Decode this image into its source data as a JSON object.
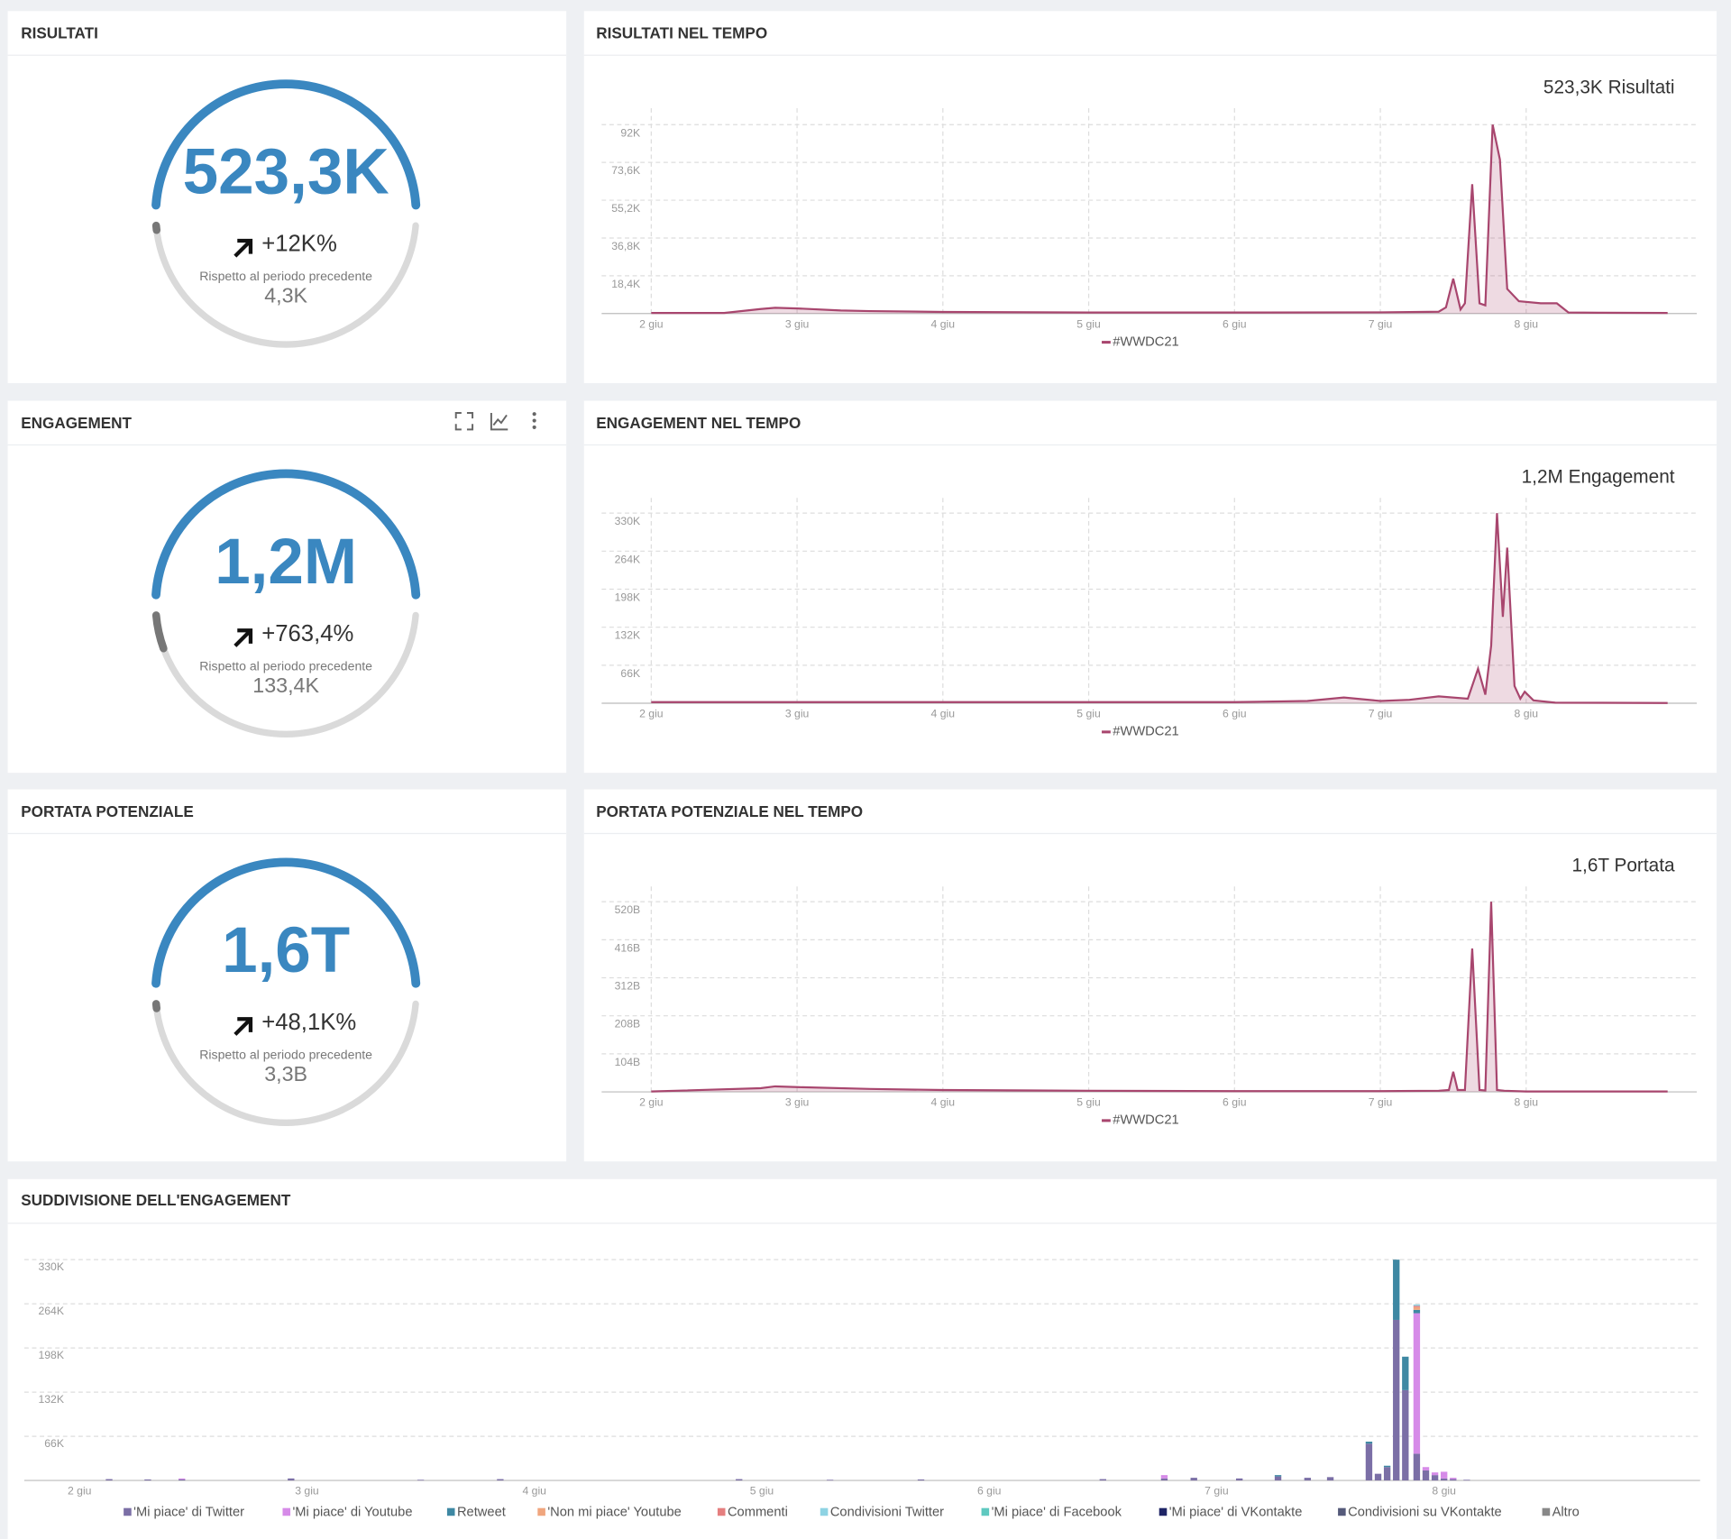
{
  "gauges": [
    {
      "title": "RISULTATI",
      "value": "523,3K",
      "change": "+12K%",
      "comparison_label": "Rispetto al periodo precedente",
      "previous": "4,3K"
    },
    {
      "title": "ENGAGEMENT",
      "value": "1,2M",
      "change": "+763,4%",
      "comparison_label": "Rispetto al periodo precedente",
      "previous": "133,4K"
    },
    {
      "title": "PORTATA POTENZIALE",
      "value": "1,6T",
      "change": "+48,1K%",
      "comparison_label": "Rispetto al periodo precedente",
      "previous": "3,3B"
    }
  ],
  "chart_data": [
    {
      "type": "line",
      "title": "RISULTATI NEL TEMPO",
      "annotation": "523,3K Risultati",
      "x": [
        2,
        2.5,
        2.75,
        2.85,
        3,
        3.3,
        3.5,
        4,
        5,
        6,
        7,
        7.4,
        7.45,
        7.5,
        7.55,
        7.58,
        7.63,
        7.68,
        7.72,
        7.77,
        7.82,
        7.87,
        7.95,
        8.1,
        8.21,
        8.29,
        8.5,
        8.97
      ],
      "series": [
        {
          "name": "#WWDC21",
          "color": "#a8466e",
          "values": [
            300,
            300,
            2200,
            2800,
            2500,
            1500,
            1200,
            800,
            500,
            500,
            600,
            900,
            3000,
            17000,
            2000,
            5000,
            63000,
            5000,
            4000,
            92000,
            75000,
            12000,
            6000,
            5000,
            5000,
            500,
            400,
            300
          ]
        }
      ],
      "xlim": [
        1.66,
        9.17
      ],
      "xticks": [
        {
          "value": 2,
          "label": "2 giu"
        },
        {
          "value": 3,
          "label": "3 giu"
        },
        {
          "value": 4,
          "label": "4 giu"
        },
        {
          "value": 5,
          "label": "5 giu"
        },
        {
          "value": 6,
          "label": "6 giu"
        },
        {
          "value": 7,
          "label": "7 giu"
        },
        {
          "value": 8,
          "label": "8 giu"
        }
      ],
      "ylim": [
        0,
        100000
      ],
      "yticks": [
        {
          "value": 18400,
          "label": "18,4K"
        },
        {
          "value": 36800,
          "label": "36,8K"
        },
        {
          "value": 55200,
          "label": "55,2K"
        },
        {
          "value": 73600,
          "label": "73,6K"
        },
        {
          "value": 92000,
          "label": "92K"
        }
      ],
      "grid": true
    },
    {
      "type": "line",
      "title": "ENGAGEMENT NEL TEMPO",
      "annotation": "1,2M Engagement",
      "x": [
        2,
        3,
        4,
        5,
        6,
        6.5,
        6.75,
        7,
        7.2,
        7.4,
        7.6,
        7.67,
        7.72,
        7.76,
        7.8,
        7.84,
        7.87,
        7.92,
        7.96,
        7.99,
        8.05,
        8.2,
        8.97
      ],
      "series": [
        {
          "name": "#WWDC21",
          "color": "#a8466e",
          "values": [
            2000,
            2000,
            2000,
            2000,
            2000,
            4000,
            10000,
            4000,
            6000,
            12000,
            8000,
            60000,
            15000,
            100000,
            330000,
            150000,
            270000,
            30000,
            8000,
            20000,
            5000,
            1000,
            500
          ]
        }
      ],
      "xlim": [
        1.66,
        9.17
      ],
      "xticks": [
        {
          "value": 2,
          "label": "2 giu"
        },
        {
          "value": 3,
          "label": "3 giu"
        },
        {
          "value": 4,
          "label": "4 giu"
        },
        {
          "value": 5,
          "label": "5 giu"
        },
        {
          "value": 6,
          "label": "6 giu"
        },
        {
          "value": 7,
          "label": "7 giu"
        },
        {
          "value": 8,
          "label": "8 giu"
        }
      ],
      "ylim": [
        0,
        356400
      ],
      "yticks": [
        {
          "value": 66000,
          "label": "66K"
        },
        {
          "value": 132000,
          "label": "132K"
        },
        {
          "value": 198000,
          "label": "198K"
        },
        {
          "value": 264000,
          "label": "264K"
        },
        {
          "value": 330000,
          "label": "330K"
        }
      ],
      "grid": true
    },
    {
      "type": "line",
      "title": "PORTATA POTENZIALE NEL TEMPO",
      "annotation": "1,6T Portata",
      "x": [
        2,
        2.75,
        2.85,
        3,
        3.5,
        4,
        5,
        6,
        7,
        7.4,
        7.47,
        7.5,
        7.53,
        7.58,
        7.63,
        7.68,
        7.72,
        7.76,
        7.8,
        7.85,
        8,
        8.97
      ],
      "series": [
        {
          "name": "#WWDC21",
          "color": "#a8466e",
          "values": [
            1000000000,
            10000000000,
            15000000000,
            13000000000,
            8000000000,
            5000000000,
            3000000000,
            2000000000,
            2000000000,
            3000000000,
            5000000000,
            55000000000,
            5000000000,
            5000000000,
            392000000000,
            5000000000,
            4000000000,
            520000000000,
            5000000000,
            3000000000,
            1000000000,
            1000000000
          ]
        }
      ],
      "xlim": [
        1.66,
        9.17
      ],
      "xticks": [
        {
          "value": 2,
          "label": "2 giu"
        },
        {
          "value": 3,
          "label": "3 giu"
        },
        {
          "value": 4,
          "label": "4 giu"
        },
        {
          "value": 5,
          "label": "5 giu"
        },
        {
          "value": 6,
          "label": "6 giu"
        },
        {
          "value": 7,
          "label": "7 giu"
        },
        {
          "value": 8,
          "label": "8 giu"
        }
      ],
      "ylim": [
        0,
        561600000000
      ],
      "yticks": [
        {
          "value": 104000000000,
          "label": "104B"
        },
        {
          "value": 208000000000,
          "label": "208B"
        },
        {
          "value": 312000000000,
          "label": "312B"
        },
        {
          "value": 416000000000,
          "label": "416B"
        },
        {
          "value": 520000000000,
          "label": "520B"
        }
      ],
      "grid": true
    },
    {
      "type": "stacked_bar",
      "title": "SUDDIVISIONE DELL'ENGAGEMENT",
      "x": [
        2.13,
        2.3,
        2.45,
        2.93,
        3.5,
        3.85,
        4.9,
        5.3,
        5.7,
        6.5,
        6.77,
        6.9,
        7.1,
        7.27,
        7.4,
        7.5,
        7.67,
        7.71,
        7.75,
        7.79,
        7.83,
        7.88,
        7.92,
        7.96,
        8.0,
        8.04,
        8.1
      ],
      "series": [
        {
          "name": "'Mi piace' di Twitter",
          "color": "#7b6fa6",
          "values": [
            2000,
            1500,
            1500,
            3000,
            1000,
            2000,
            2000,
            1000,
            1500,
            2000,
            3000,
            4000,
            3000,
            6000,
            4000,
            5000,
            55000,
            10000,
            20000,
            240000,
            135000,
            40000,
            15000,
            8000,
            3000,
            2000,
            1000
          ]
        },
        {
          "name": "'Mi piace' di Youtube",
          "color": "#d68be8",
          "values": [
            0,
            0,
            1500,
            0,
            0,
            0,
            0,
            0,
            0,
            0,
            5000,
            0,
            0,
            0,
            0,
            0,
            0,
            0,
            0,
            0,
            0,
            210000,
            5000,
            4000,
            10000,
            2000,
            0
          ]
        },
        {
          "name": "Retweet",
          "color": "#3e88a3",
          "values": [
            0,
            0,
            0,
            0,
            0,
            0,
            0,
            0,
            0,
            0,
            0,
            0,
            0,
            2000,
            0,
            0,
            3000,
            0,
            2000,
            90000,
            50000,
            5000,
            0,
            0,
            0,
            0,
            0
          ]
        },
        {
          "name": "'Non mi piace' Youtube",
          "color": "#f0a67e",
          "values": [
            0,
            0,
            0,
            0,
            0,
            0,
            0,
            0,
            0,
            0,
            0,
            0,
            0,
            0,
            0,
            0,
            0,
            0,
            0,
            0,
            0,
            4000,
            0,
            0,
            0,
            0,
            0
          ]
        },
        {
          "name": "Commenti",
          "color": "#e57f7f",
          "values": [
            0,
            0,
            0,
            0,
            0,
            0,
            0,
            0,
            0,
            0,
            0,
            0,
            0,
            0,
            0,
            0,
            0,
            0,
            0,
            0,
            0,
            2000,
            0,
            0,
            0,
            0,
            0
          ]
        },
        {
          "name": "Condivisioni Twitter",
          "color": "#8ed3e3",
          "values": [
            0,
            0,
            0,
            0,
            0,
            0,
            0,
            0,
            0,
            0,
            0,
            0,
            0,
            0,
            0,
            0,
            0,
            0,
            0,
            0,
            0,
            2000,
            0,
            0,
            0,
            0,
            0
          ]
        },
        {
          "name": "'Mi piace' di Facebook",
          "color": "#5fc9c0",
          "values": [
            0,
            0,
            0,
            0,
            0,
            0,
            0,
            0,
            0,
            0,
            0,
            0,
            0,
            0,
            0,
            0,
            0,
            0,
            0,
            0,
            0,
            0,
            0,
            0,
            0,
            0,
            0
          ]
        },
        {
          "name": "'Mi piace' di VKontakte",
          "color": "#1f2566",
          "values": [
            0,
            0,
            0,
            0,
            0,
            0,
            0,
            0,
            0,
            0,
            0,
            0,
            0,
            0,
            0,
            0,
            0,
            0,
            0,
            0,
            0,
            0,
            0,
            0,
            0,
            0,
            0
          ]
        },
        {
          "name": "Condivisioni su VKontakte",
          "color": "#555a7a",
          "values": [
            0,
            0,
            0,
            0,
            0,
            0,
            0,
            0,
            0,
            0,
            0,
            0,
            0,
            0,
            0,
            0,
            0,
            0,
            0,
            0,
            0,
            0,
            0,
            0,
            0,
            0,
            0
          ]
        },
        {
          "name": "Altro",
          "color": "#888888",
          "values": [
            0,
            0,
            0,
            0,
            0,
            0,
            0,
            0,
            0,
            0,
            0,
            0,
            0,
            0,
            0,
            0,
            0,
            0,
            0,
            0,
            0,
            0,
            0,
            0,
            0,
            0,
            0
          ]
        }
      ],
      "xlim": [
        1.757,
        9.126
      ],
      "xticks": [
        {
          "value": 2,
          "label": "2 giu"
        },
        {
          "value": 3,
          "label": "3 giu"
        },
        {
          "value": 4,
          "label": "4 giu"
        },
        {
          "value": 5,
          "label": "5 giu"
        },
        {
          "value": 6,
          "label": "6 giu"
        },
        {
          "value": 7,
          "label": "7 giu"
        },
        {
          "value": 8,
          "label": "8 giu"
        }
      ],
      "ylim": [
        0,
        356400
      ],
      "yticks": [
        {
          "value": 66000,
          "label": "66K"
        },
        {
          "value": 132000,
          "label": "132K"
        },
        {
          "value": 198000,
          "label": "198K"
        },
        {
          "value": 264000,
          "label": "264K"
        },
        {
          "value": 330000,
          "label": "330K"
        }
      ],
      "grid": true
    }
  ]
}
